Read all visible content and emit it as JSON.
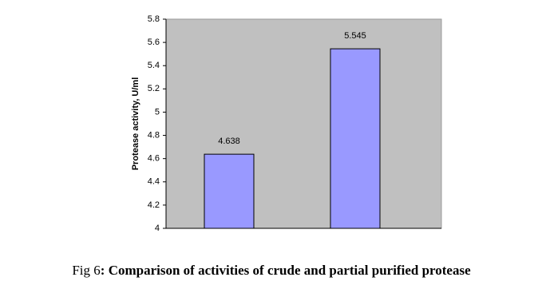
{
  "chart_data": {
    "type": "bar",
    "y_label": "Protease activity, U/ml",
    "categories": [
      null,
      null
    ],
    "values": [
      4.638,
      5.545
    ],
    "color": "#9999ff",
    "ylim": [
      4,
      5.8
    ],
    "yticks": [
      4,
      4.2,
      4.4,
      4.6,
      4.8,
      5,
      5.2,
      5.4,
      5.6,
      5.8
    ],
    "plot_background": "#c0c0c0"
  },
  "caption": {
    "label": "Fig 6",
    "text": ": Comparison of activities of crude and partial purified protease"
  }
}
